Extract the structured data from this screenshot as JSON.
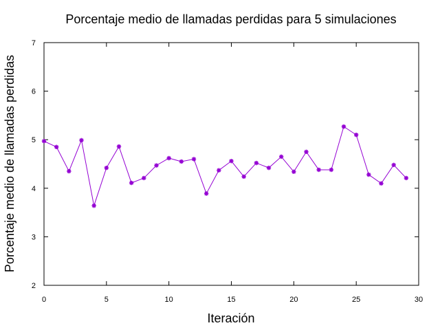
{
  "chart_data": {
    "type": "line",
    "title": "Porcentaje medio de llamadas perdidas para 5 simulaciones",
    "xlabel": "Iteración",
    "ylabel": "Porcentaje medio de llamadas perdidas",
    "xlim": [
      0,
      30
    ],
    "ylim": [
      2,
      7
    ],
    "xticks": [
      0,
      5,
      10,
      15,
      20,
      25,
      30
    ],
    "yticks": [
      2,
      3,
      4,
      5,
      6,
      7
    ],
    "grid": false,
    "legend": "none",
    "series_color": "#9400d3",
    "x": [
      0,
      1,
      2,
      3,
      4,
      5,
      6,
      7,
      8,
      9,
      10,
      11,
      12,
      13,
      14,
      15,
      16,
      17,
      18,
      19,
      20,
      21,
      22,
      23,
      24,
      25,
      26,
      27,
      28,
      29
    ],
    "y": [
      4.97,
      4.85,
      4.35,
      4.99,
      3.64,
      4.42,
      4.86,
      4.11,
      4.21,
      4.47,
      4.62,
      4.55,
      4.6,
      3.89,
      4.37,
      4.56,
      4.24,
      4.52,
      4.42,
      4.65,
      4.34,
      4.75,
      4.38,
      4.38,
      5.27,
      5.1,
      4.28,
      4.1,
      4.48,
      4.21
    ]
  }
}
